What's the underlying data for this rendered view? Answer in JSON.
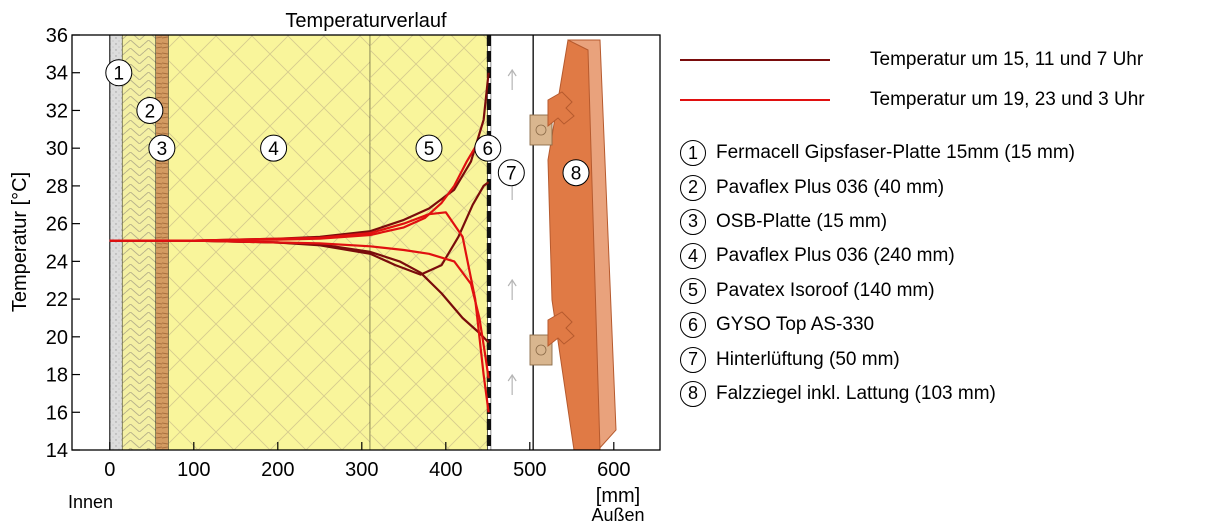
{
  "chart_data": {
    "type": "line",
    "title": "Temperaturverlauf",
    "xlabel": "[mm]",
    "ylabel": "Temperatur [°C]",
    "xlim": [
      -45,
      655
    ],
    "ylim": [
      14,
      36
    ],
    "x_ticks": [
      0,
      100,
      200,
      300,
      400,
      500,
      600
    ],
    "y_ticks": [
      14,
      16,
      18,
      20,
      22,
      24,
      26,
      28,
      30,
      32,
      34,
      36
    ],
    "side_labels": {
      "inside": "Innen",
      "outside": "Außen"
    },
    "layers": [
      {
        "number": "1",
        "name": "Fermacell Gipsfaser-Platte 15mm (15 mm)",
        "x_from": 0,
        "x_to": 15,
        "color": "#dcdcdc"
      },
      {
        "number": "2",
        "name": "Pavaflex Plus 036 (40 mm)",
        "x_from": 15,
        "x_to": 55,
        "color": "#f4f0a4"
      },
      {
        "number": "3",
        "name": "OSB-Platte (15 mm)",
        "x_from": 55,
        "x_to": 70,
        "color": "#d39b62"
      },
      {
        "number": "4",
        "name": "Pavaflex Plus 036 (240 mm)",
        "x_from": 70,
        "x_to": 310,
        "color": "#f9f59b"
      },
      {
        "number": "5",
        "name": "Pavatex Isoroof (140 mm)",
        "x_from": 310,
        "x_to": 450,
        "color": "#f9f59b"
      },
      {
        "number": "6",
        "name": "GYSO Top AS-330",
        "x_from": 450,
        "x_to": 454,
        "color": "#111111"
      },
      {
        "number": "7",
        "name": "Hinterlüftung (50 mm)",
        "x_from": 454,
        "x_to": 504,
        "color": "#ffffff"
      },
      {
        "number": "8",
        "name": "Falzziegel inkl. Lattung (103 mm)",
        "x_from": 504,
        "x_to": 607,
        "color": "#e07a45"
      }
    ],
    "series": [
      {
        "name": "Temperatur um 15, 11 und 7 Uhr",
        "color": "#7a0c0c",
        "width": 2.2,
        "lines": [
          {
            "x": [
              0,
              100,
              200,
              250,
              310,
              350,
              380,
              410,
              430,
              445,
              451
            ],
            "y": [
              25.1,
              25.1,
              25.2,
              25.3,
              25.6,
              26.2,
              26.8,
              27.8,
              29.3,
              31.5,
              34.0
            ]
          },
          {
            "x": [
              0,
              100,
              200,
              250,
              310,
              345,
              370,
              395,
              420,
              440,
              451
            ],
            "y": [
              25.1,
              25.1,
              25.0,
              24.9,
              24.5,
              24.0,
              23.4,
              22.3,
              21.0,
              20.2,
              19.7
            ]
          },
          {
            "x": [
              0,
              100,
              200,
              250,
              310,
              340,
              370,
              395,
              415,
              432,
              445,
              451
            ],
            "y": [
              25.1,
              25.1,
              25.0,
              24.85,
              24.4,
              23.8,
              23.3,
              23.8,
              25.3,
              27.0,
              28.0,
              28.2
            ]
          }
        ]
      },
      {
        "name": "Temperatur um 19, 23 und 3 Uhr",
        "color": "#e01010",
        "width": 2.2,
        "lines": [
          {
            "x": [
              0,
              100,
              200,
              250,
              310,
              350,
              380,
              400,
              420,
              435,
              445,
              451
            ],
            "y": [
              25.1,
              25.1,
              25.2,
              25.25,
              25.5,
              26.0,
              26.5,
              26.6,
              25.3,
              22.0,
              18.0,
              16.0
            ]
          },
          {
            "x": [
              0,
              100,
              200,
              250,
              310,
              350,
              380,
              410,
              430,
              440,
              447,
              451
            ],
            "y": [
              25.1,
              25.1,
              25.0,
              24.95,
              24.8,
              24.6,
              24.4,
              24.0,
              22.8,
              21.0,
              19.0,
              17.8
            ]
          },
          {
            "x": [
              0,
              100,
              200,
              250,
              310,
              350,
              375,
              395,
              410,
              425,
              437,
              445,
              451
            ],
            "y": [
              25.1,
              25.1,
              25.15,
              25.2,
              25.4,
              25.8,
              26.3,
              27.1,
              28.0,
              29.3,
              30.2,
              30.1,
              29.4
            ]
          }
        ]
      }
    ]
  }
}
